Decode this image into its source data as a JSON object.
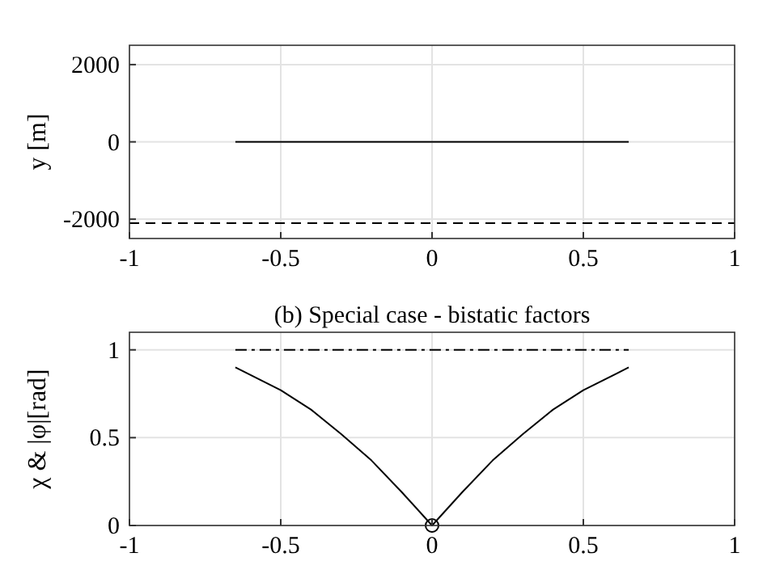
{
  "chart_data": [
    {
      "type": "line",
      "ylabel": "y [m]",
      "xlim": [
        -1,
        1
      ],
      "xticks": [
        -1,
        -0.5,
        0,
        0.5,
        1
      ],
      "ylim": [
        -2500,
        2500
      ],
      "yticks": [
        -2000,
        0,
        2000
      ],
      "grid": true,
      "series": [
        {
          "color": "#000000",
          "line_style": "solid",
          "x": [
            -0.65,
            0.65
          ],
          "values": [
            0,
            0
          ]
        },
        {
          "color": "#000000",
          "line_style": "dashed",
          "x": [
            -1,
            1
          ],
          "values": [
            -2100,
            -2100
          ]
        }
      ]
    },
    {
      "type": "line",
      "title": "(b) Special case - bistatic factors",
      "ylabel": "χ & |φ|[rad]",
      "xlim": [
        -1,
        1
      ],
      "xticks": [
        -1,
        -0.5,
        0,
        0.5,
        1
      ],
      "ylim": [
        0,
        1.1
      ],
      "yticks": [
        0,
        0.5,
        1
      ],
      "grid": true,
      "series": [
        {
          "color": "#000000",
          "line_style": "solid",
          "x": [
            -0.65,
            -0.5,
            -0.4,
            -0.3,
            -0.2,
            -0.1,
            0,
            0.1,
            0.2,
            0.3,
            0.4,
            0.5,
            0.65
          ],
          "values": [
            0.9,
            0.77,
            0.66,
            0.52,
            0.37,
            0.19,
            0,
            0.19,
            0.37,
            0.52,
            0.66,
            0.77,
            0.9
          ]
        },
        {
          "color": "#000000",
          "line_style": "dashdot",
          "x": [
            -0.65,
            0.65
          ],
          "values": [
            1,
            1
          ]
        },
        {
          "type": "scatter",
          "color": "#000000",
          "marker": "circle",
          "x": [
            0
          ],
          "values": [
            0
          ]
        }
      ]
    }
  ]
}
